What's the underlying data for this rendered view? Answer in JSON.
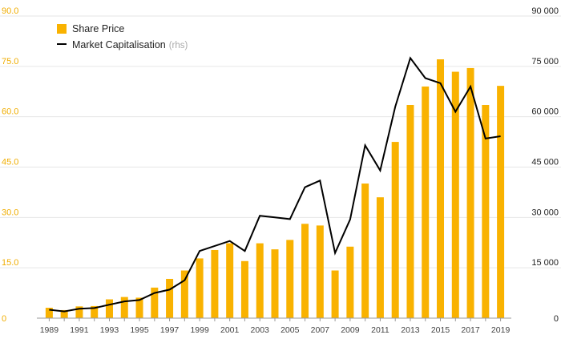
{
  "chart_data": {
    "type": "bar",
    "categories": [
      "1989",
      "1990",
      "1991",
      "1992",
      "1993",
      "1994",
      "1995",
      "1996",
      "1997",
      "1998",
      "1999",
      "2000",
      "2001",
      "2002",
      "2003",
      "2004",
      "2005",
      "2006",
      "2007",
      "2008",
      "2009",
      "2010",
      "2011",
      "2012",
      "2013",
      "2014",
      "2015",
      "2016",
      "2017",
      "2018",
      "2019"
    ],
    "series": [
      {
        "name": "Share Price",
        "type": "bar",
        "axis": "left",
        "color": "#f9b200",
        "values": [
          3.1,
          2.4,
          3.5,
          3.6,
          5.6,
          6.3,
          6.1,
          9.1,
          11.7,
          14.2,
          17.8,
          20.3,
          22.3,
          17.0,
          22.3,
          20.5,
          23.3,
          28.1,
          27.6,
          14.2,
          21.3,
          40.1,
          36.0,
          52.5,
          63.5,
          69.0,
          77.1,
          73.4,
          74.5,
          63.5,
          69.2
        ]
      },
      {
        "name": "Market Capitalisation",
        "name_suffix": "(rhs)",
        "type": "line",
        "axis": "right",
        "color": "#000000",
        "values": [
          2500,
          2000,
          2800,
          3000,
          4000,
          5000,
          5400,
          7500,
          8500,
          11300,
          20000,
          21500,
          23000,
          20000,
          30500,
          30000,
          29500,
          39000,
          41000,
          19400,
          29400,
          51500,
          44000,
          63000,
          77500,
          71500,
          70000,
          61500,
          69000,
          53500,
          54200
        ]
      }
    ],
    "xticks": [
      "1989",
      "1991",
      "1993",
      "1995",
      "1997",
      "1999",
      "2001",
      "2003",
      "2005",
      "2007",
      "2009",
      "2011",
      "2013",
      "2015",
      "2017",
      "2019"
    ],
    "yticks_left": [
      "0",
      "15.0",
      "30.0",
      "45.0",
      "60.0",
      "75.0",
      "90.0"
    ],
    "yticks_right": [
      "0",
      "15 000",
      "30 000",
      "45 000",
      "60 000",
      "75 000",
      "90 000"
    ],
    "ylim": [
      0,
      90
    ],
    "ylim_right": [
      0,
      90000
    ],
    "grid": true,
    "legend_position": "top-left",
    "title": "",
    "xlabel": "",
    "ylabel": ""
  }
}
